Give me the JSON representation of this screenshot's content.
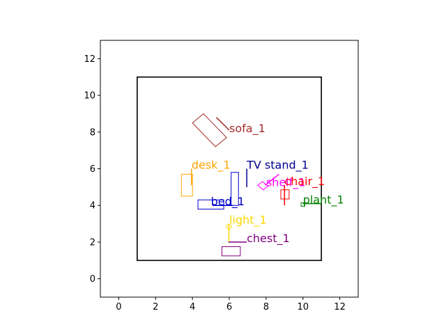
{
  "chart_data": {
    "type": "scatter",
    "title": "",
    "xlabel": "",
    "ylabel": "",
    "xlim": [
      -1,
      13
    ],
    "ylim": [
      -1,
      13
    ],
    "xticks": [
      0,
      2,
      4,
      6,
      8,
      10,
      12
    ],
    "yticks": [
      0,
      2,
      4,
      6,
      8,
      10,
      12
    ],
    "grid": false,
    "room": {
      "x0": 1,
      "y0": 1,
      "x1": 11,
      "y1": 11,
      "color": "#000000"
    },
    "objects": [
      {
        "id": "sofa_1",
        "label": "sofa_1",
        "color": "#a52a2a",
        "shape": "rect",
        "points": [
          [
            4.0,
            8.5
          ],
          [
            4.6,
            9.0
          ],
          [
            5.85,
            7.7
          ],
          [
            5.25,
            7.2
          ]
        ],
        "line": [
          [
            5.3,
            8.8
          ],
          [
            6.0,
            8.1
          ]
        ],
        "label_pos": [
          6.0,
          8.0
        ]
      },
      {
        "id": "desk_1",
        "label": "desk_1",
        "color": "#ffa500",
        "shape": "rect",
        "points": [
          [
            3.4,
            4.5
          ],
          [
            4.0,
            4.5
          ],
          [
            4.0,
            5.7
          ],
          [
            3.4,
            5.7
          ]
        ],
        "line": [
          [
            3.95,
            5.1
          ],
          [
            3.95,
            6.0
          ]
        ],
        "label_pos": [
          3.95,
          6.0
        ]
      },
      {
        "id": "TV stand_1",
        "label": "TV stand_1",
        "color": "#00008b",
        "shape": "line",
        "points": [],
        "line": [
          [
            6.95,
            5.0
          ],
          [
            6.95,
            6.0
          ]
        ],
        "label_pos": [
          6.95,
          6.0
        ]
      },
      {
        "id": "bed_1",
        "label": "bed_1",
        "color": "#0000cd",
        "shape": "rect",
        "points": [
          [
            4.3,
            3.8
          ],
          [
            5.7,
            3.8
          ],
          [
            5.7,
            4.3
          ],
          [
            4.3,
            4.3
          ]
        ],
        "extra_rects": [
          [
            [
              6.1,
              4.0
            ],
            [
              6.5,
              4.0
            ],
            [
              6.5,
              5.8
            ],
            [
              6.1,
              5.8
            ]
          ]
        ],
        "line": [
          [
            5.1,
            4.0
          ],
          [
            6.2,
            4.0
          ]
        ],
        "label_pos": [
          5.0,
          4.0
        ]
      },
      {
        "id": "shelf_1",
        "label": "shelf_1",
        "color": "#ff00ff",
        "shape": "rect",
        "points": [
          [
            7.55,
            5.1
          ],
          [
            7.8,
            5.3
          ],
          [
            8.1,
            5.05
          ],
          [
            7.85,
            4.85
          ]
        ],
        "line": [
          [
            7.95,
            5.1
          ],
          [
            8.7,
            5.7
          ]
        ],
        "label_pos": [
          8.0,
          5.05
        ]
      },
      {
        "id": "chair_1",
        "label": "chair_1",
        "color": "#ff0000",
        "shape": "rect",
        "points": [
          [
            8.8,
            4.35
          ],
          [
            9.25,
            4.35
          ],
          [
            9.25,
            4.85
          ],
          [
            8.8,
            4.85
          ]
        ],
        "line": [
          [
            9.0,
            4.0
          ],
          [
            9.0,
            5.1
          ]
        ],
        "label_pos": [
          9.0,
          5.1
        ]
      },
      {
        "id": "plant_1",
        "label": "plant_1",
        "color": "#008000",
        "shape": "rect",
        "points": [
          [
            9.9,
            3.95
          ],
          [
            10.1,
            3.95
          ],
          [
            10.1,
            4.15
          ],
          [
            9.9,
            4.15
          ]
        ],
        "line": [
          [
            10.0,
            4.1
          ],
          [
            11.0,
            4.1
          ]
        ],
        "label_pos": [
          10.0,
          4.1
        ]
      },
      {
        "id": "light_1",
        "label": "light_1",
        "color": "#ffd700",
        "shape": "circle",
        "points": [
          [
            5.98,
            2.85
          ]
        ],
        "line": [
          [
            5.98,
            2.0
          ],
          [
            5.98,
            3.0
          ]
        ],
        "label_pos": [
          6.0,
          3.0
        ]
      },
      {
        "id": "chest_1",
        "label": "chest_1",
        "color": "#800080",
        "shape": "rect",
        "points": [
          [
            5.6,
            1.25
          ],
          [
            6.6,
            1.25
          ],
          [
            6.6,
            1.75
          ],
          [
            5.6,
            1.75
          ]
        ],
        "line": [
          [
            5.95,
            2.0
          ],
          [
            6.95,
            2.0
          ]
        ],
        "label_pos": [
          6.95,
          2.0
        ]
      }
    ]
  }
}
